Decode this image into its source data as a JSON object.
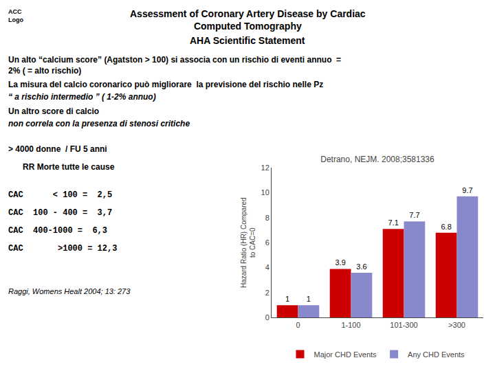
{
  "chart_data": {
    "type": "bar",
    "title": "Detrano, NEJM. 2008;3581336",
    "ylabel": "Hazard Ratio (HR) Compared\nto CAC=0",
    "categories": [
      "0",
      "1-100",
      "101-300",
      ">300"
    ],
    "series": [
      {
        "name": "Major CHD Events",
        "color": "#cc0000",
        "values": [
          1,
          3.9,
          7.1,
          6.8
        ]
      },
      {
        "name": "Any CHD Events",
        "color": "#8888cc",
        "values": [
          1,
          3.6,
          7.7,
          9.7
        ]
      }
    ],
    "ylim": [
      0,
      12
    ],
    "yticks": [
      0,
      2,
      4,
      6,
      8,
      10,
      12
    ],
    "grid": false,
    "legend": "bottom",
    "data_labels": true,
    "annotations": [
      "Assessment of Coronary Artery Disease by Cardiac\nComputed Tomography",
      "AHA Scientific Statement",
      "ACC\nLogo",
      "Un alto “calcium score” (Agatston > 100) si associa con un rischio di eventi annuo  =\n2% ( = alto rischio)",
      "La misura del calcio coronarico può migliorare  la previsione del rischio nelle Pz",
      "“ a rischio intermedio ” ( 1-2% annuo)",
      "Un altro score di calcio ",
      "non correla con la presenza di stenosi critiche",
      "> 4000 donne  / FU 5 anni",
      "RR Morte tutte le cause",
      "CAC      < 100 =  2,5",
      "CAC  100 - 400 =  3,7",
      "CAC  400-1000 =  6,3",
      "CAC       >1000 = 12,3",
      "Raggi, Womens Healt 2004; 13: 273"
    ]
  }
}
